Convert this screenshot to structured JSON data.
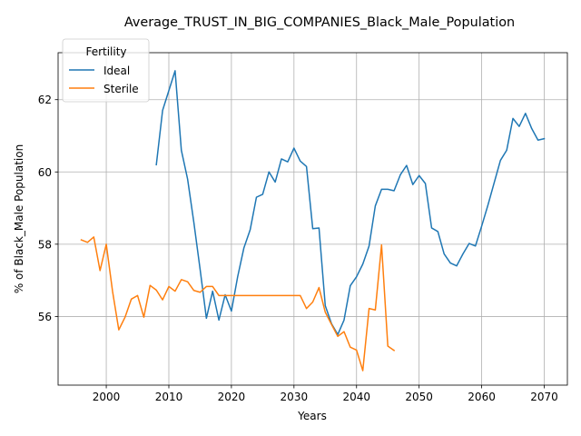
{
  "chart_data": {
    "type": "line",
    "title": "Average_TRUST_IN_BIG_COMPANIES_Black_Male_Population",
    "xlabel": "Years",
    "ylabel": "% of Black_Male Population",
    "xlim": [
      1992.3,
      2073.7
    ],
    "ylim": [
      54.1,
      63.3
    ],
    "x_ticks": [
      2000,
      2010,
      2020,
      2030,
      2040,
      2050,
      2060,
      2070
    ],
    "y_ticks": [
      56,
      58,
      60,
      62
    ],
    "grid": true,
    "legend": {
      "title": "Fertility",
      "placement": "upper-left"
    },
    "series": [
      {
        "name": "Ideal",
        "color": "#1f77b4",
        "x": [
          2008,
          2009,
          2010,
          2011,
          2012,
          2013,
          2014,
          2015,
          2016,
          2017,
          2018,
          2019,
          2020,
          2021,
          2022,
          2023,
          2024,
          2025,
          2026,
          2027,
          2028,
          2029,
          2030,
          2031,
          2032,
          2033,
          2034,
          2035,
          2036,
          2037,
          2038,
          2039,
          2040,
          2041,
          2042,
          2043,
          2044,
          2045,
          2046,
          2047,
          2048,
          2049,
          2050,
          2051,
          2052,
          2053,
          2054,
          2055,
          2056,
          2057,
          2058,
          2059,
          2060,
          2061,
          2062,
          2063,
          2064,
          2065,
          2066,
          2067,
          2068,
          2069,
          2070
        ],
        "values": [
          60.2,
          61.7,
          62.25,
          62.8,
          60.6,
          59.8,
          58.6,
          57.3,
          55.95,
          56.7,
          55.9,
          56.6,
          56.15,
          57.1,
          57.9,
          58.4,
          59.3,
          59.38,
          60.0,
          59.72,
          60.36,
          60.28,
          60.66,
          60.3,
          60.15,
          58.43,
          58.45,
          56.3,
          55.8,
          55.5,
          55.9,
          56.85,
          57.1,
          57.45,
          57.95,
          59.06,
          59.52,
          59.52,
          59.48,
          59.92,
          60.18,
          59.65,
          59.9,
          59.68,
          58.45,
          58.35,
          57.73,
          57.48,
          57.4,
          57.73,
          58.02,
          57.95,
          58.5,
          59.08,
          59.7,
          60.32,
          60.6,
          61.48,
          61.26,
          61.62,
          61.2,
          60.88,
          60.92
        ]
      },
      {
        "name": "Sterile",
        "color": "#ff7f0e",
        "x": [
          1996,
          1997,
          1998,
          1999,
          2000,
          2001,
          2002,
          2003,
          2004,
          2005,
          2006,
          2007,
          2008,
          2009,
          2010,
          2011,
          2012,
          2013,
          2014,
          2015,
          2016,
          2017,
          2018,
          2019,
          2020,
          2021,
          2022,
          2023,
          2024,
          2025,
          2026,
          2027,
          2028,
          2029,
          2030,
          2031,
          2032,
          2033,
          2034,
          2035,
          2036,
          2037,
          2038,
          2039,
          2040,
          2041,
          2042,
          2043,
          2044,
          2045,
          2046
        ],
        "values": [
          58.12,
          58.05,
          58.2,
          57.27,
          58.0,
          56.7,
          55.63,
          55.98,
          56.48,
          56.58,
          55.98,
          56.86,
          56.73,
          56.46,
          56.83,
          56.7,
          57.02,
          56.96,
          56.72,
          56.67,
          56.83,
          56.83,
          56.58,
          56.58,
          56.58,
          56.58,
          56.58,
          56.58,
          56.58,
          56.58,
          56.58,
          56.58,
          56.58,
          56.58,
          56.58,
          56.58,
          56.22,
          56.4,
          56.8,
          56.12,
          55.78,
          55.45,
          55.58,
          55.15,
          55.07,
          54.5,
          56.22,
          56.18,
          57.98,
          55.18,
          55.06
        ]
      }
    ]
  }
}
